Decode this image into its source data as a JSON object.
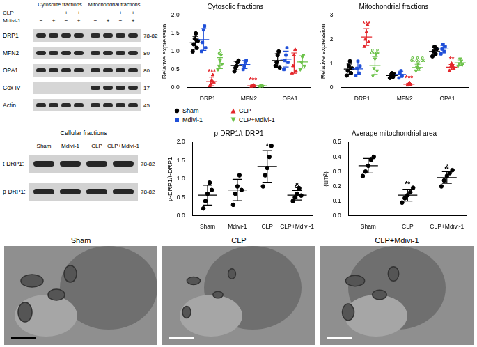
{
  "blots": [
    {
      "headers": [
        "Cytosolite fractions",
        "Mitochondrial fractions"
      ],
      "conditions": [
        {
          "name": "CLP",
          "signs": [
            "−",
            "−",
            "+",
            "+",
            "−",
            "−",
            "+",
            "+"
          ]
        },
        {
          "name": "Mdivi-1",
          "signs": [
            "−",
            "+",
            "−",
            "+",
            "−",
            "+",
            "−",
            "+"
          ]
        }
      ],
      "bands": [
        {
          "name": "DRP1",
          "size": "78-82",
          "present": [
            true,
            true,
            true,
            true,
            true,
            true,
            true,
            true
          ]
        },
        {
          "name": "MFN2",
          "size": "80",
          "present": [
            true,
            true,
            true,
            true,
            true,
            true,
            true,
            true
          ]
        },
        {
          "name": "OPA1",
          "size": "80",
          "present": [
            true,
            true,
            true,
            true,
            true,
            true,
            true,
            true
          ]
        },
        {
          "name": "Cox IV",
          "size": "17",
          "present": [
            false,
            false,
            false,
            false,
            true,
            true,
            true,
            true
          ]
        },
        {
          "name": "Actin",
          "size": "45",
          "present": [
            true,
            true,
            true,
            true,
            true,
            true,
            true,
            true
          ]
        }
      ]
    },
    {
      "title": "Cellular fractions",
      "columns": [
        "Sham",
        "Mdivi-1",
        "CLP",
        "CLP+Mdivi-1"
      ],
      "bands": [
        {
          "name": "t-DRP1:",
          "size": "78-82",
          "present": [
            true,
            true,
            true,
            true
          ]
        },
        {
          "name": "p-DRP1:",
          "size": "78-82",
          "present": [
            true,
            true,
            true,
            true
          ]
        }
      ]
    }
  ],
  "micrographs": [
    "Sham",
    "CLP",
    "CLP+Mdivi-1"
  ],
  "chart_data": [
    {
      "type": "dot",
      "title": "Cytosolic fractions",
      "y_label": "Relative expression",
      "categories": [
        "DRP1",
        "MFN2",
        "OPA1"
      ],
      "ylim": [
        0,
        2.0
      ],
      "yticks": [
        {
          "value": 0,
          "label": "0.0"
        },
        {
          "value": 0.5,
          "label": "0.5"
        },
        {
          "value": 1.0,
          "label": "1.0"
        },
        {
          "value": 1.5,
          "label": "1.5"
        },
        {
          "value": 2.0,
          "label": "2.0"
        }
      ],
      "grid": false,
      "legend": "bottom",
      "series": [
        {
          "name": "Sham",
          "color": "#000000",
          "marker": "circle",
          "values": [
            [
              1.0,
              1.2,
              1.35,
              1.5,
              1.1,
              1.3
            ],
            [
              0.45,
              0.55,
              0.6,
              0.7,
              0.75
            ],
            [
              0.6,
              0.7,
              0.9,
              1.0,
              0.55
            ]
          ],
          "mean": [
            1.24,
            0.61,
            0.75
          ],
          "sd": [
            0.18,
            0.12,
            0.19
          ]
        },
        {
          "name": "Mdivi-1",
          "color": "#1f4fd8",
          "marker": "square",
          "values": [
            [
              1.0,
              1.25,
              1.6,
              1.7,
              1.1
            ],
            [
              0.5,
              0.6,
              0.7,
              0.75
            ],
            [
              0.5,
              0.75,
              0.9,
              1.1,
              0.7
            ]
          ],
          "mean": [
            1.33,
            0.64,
            0.79
          ],
          "sd": [
            0.3,
            0.11,
            0.22
          ]
        },
        {
          "name": "CLP",
          "color": "#e3262b",
          "marker": "triangle",
          "values": [
            [
              0.05,
              0.1,
              0.2,
              0.35,
              0.15
            ],
            [
              0.03,
              0.05,
              0.07,
              0.04
            ],
            [
              0.4,
              0.6,
              0.9,
              1.05,
              0.45
            ]
          ],
          "mean": [
            0.17,
            0.05,
            0.68
          ],
          "sd": [
            0.12,
            0.02,
            0.28
          ]
        },
        {
          "name": "CLP+Mdivi-1",
          "color": "#6cc24a",
          "marker": "triangle-down",
          "values": [
            [
              0.5,
              0.6,
              0.75,
              0.9,
              0.65
            ],
            [
              0.03,
              0.05,
              0.06,
              0.04
            ],
            [
              0.5,
              0.7,
              0.85,
              0.9,
              0.6
            ]
          ],
          "mean": [
            0.68,
            0.05,
            0.71
          ],
          "sd": [
            0.15,
            0.01,
            0.17
          ]
        }
      ],
      "annotations": [
        {
          "category": "DRP1",
          "series": "CLP",
          "text": "***"
        },
        {
          "category": "DRP1",
          "series": "CLP+Mdivi-1",
          "text": "&"
        },
        {
          "category": "MFN2",
          "series": "CLP",
          "text": "***"
        }
      ]
    },
    {
      "type": "dot",
      "title": "Mitochondrial fractions",
      "y_label": "Relative expression",
      "categories": [
        "DRP1",
        "MFN2",
        "OPA1"
      ],
      "ylim": [
        0,
        3
      ],
      "yticks": [
        0,
        1,
        2,
        3
      ],
      "grid": false,
      "series": [
        {
          "name": "Sham",
          "color": "#000000",
          "marker": "circle",
          "values": [
            [
              0.5,
              0.7,
              0.9,
              1.1,
              0.6,
              0.8
            ],
            [
              0.4,
              0.5,
              0.6,
              0.45,
              0.55
            ],
            [
              1.3,
              1.5,
              1.7,
              1.4,
              1.6
            ]
          ],
          "mean": [
            0.77,
            0.5,
            1.5
          ],
          "sd": [
            0.21,
            0.08,
            0.16
          ]
        },
        {
          "name": "Mdivi-1",
          "color": "#1f4fd8",
          "marker": "square",
          "values": [
            [
              0.5,
              0.8,
              1.1,
              0.6,
              0.9
            ],
            [
              0.4,
              0.6,
              0.7,
              0.5
            ],
            [
              1.4,
              1.6,
              1.8,
              1.5,
              1.7
            ]
          ],
          "mean": [
            0.78,
            0.55,
            1.6
          ],
          "sd": [
            0.24,
            0.13,
            0.16
          ]
        },
        {
          "name": "CLP",
          "color": "#e3262b",
          "marker": "triangle",
          "values": [
            [
              1.7,
              2.0,
              2.3,
              2.6,
              1.9
            ],
            [
              0.1,
              0.15,
              0.2,
              0.12
            ],
            [
              0.7,
              0.85,
              1.0,
              0.9,
              0.8
            ]
          ],
          "mean": [
            2.1,
            0.14,
            0.85
          ],
          "sd": [
            0.35,
            0.04,
            0.11
          ]
        },
        {
          "name": "CLP+Mdivi-1",
          "color": "#6cc24a",
          "marker": "triangle-down",
          "values": [
            [
              0.5,
              0.8,
              1.2,
              1.4,
              0.7
            ],
            [
              0.7,
              0.85,
              1.0,
              0.8
            ],
            [
              0.9,
              1.0,
              1.2,
              1.1,
              0.95
            ]
          ],
          "mean": [
            0.92,
            0.84,
            1.03
          ],
          "sd": [
            0.37,
            0.13,
            0.12
          ]
        }
      ],
      "annotations": [
        {
          "category": "DRP1",
          "series": "CLP",
          "text": "***"
        },
        {
          "category": "DRP1",
          "series": "CLP+Mdivi-1",
          "text": "&&"
        },
        {
          "category": "MFN2",
          "series": "CLP",
          "text": "***"
        },
        {
          "category": "MFN2",
          "series": "CLP+Mdivi-1",
          "text": "&&&"
        },
        {
          "category": "OPA1",
          "series": "CLP",
          "text": "**"
        }
      ]
    },
    {
      "type": "dot",
      "title": "p-DRP1/t-DRP1",
      "y_label": "p-DRP1/t-DRP1",
      "categories": [
        "Sham",
        "Mdivi-1",
        "CLP",
        "CLP+Mdivi-1"
      ],
      "ylim": [
        0,
        2.0
      ],
      "yticks": [
        {
          "value": 0,
          "label": "0.0"
        },
        {
          "value": 0.5,
          "label": "0.5"
        },
        {
          "value": 1.0,
          "label": "1.0"
        },
        {
          "value": 1.5,
          "label": "1.5"
        },
        {
          "value": 2.0,
          "label": "2.0"
        }
      ],
      "grid": false,
      "series": [
        {
          "color": "#000000",
          "marker": "circle",
          "values": [
            [
              0.2,
              0.4,
              0.6,
              0.9,
              0.7
            ],
            [
              0.3,
              0.6,
              0.8,
              1.1,
              0.7
            ],
            [
              0.8,
              1.1,
              1.3,
              1.6,
              1.9
            ],
            [
              0.4,
              0.5,
              0.6,
              0.75,
              0.55
            ]
          ],
          "mean": [
            0.56,
            0.7,
            1.34,
            0.56
          ],
          "sd": [
            0.27,
            0.29,
            0.43,
            0.13
          ]
        }
      ],
      "annotations": [
        {
          "category": "CLP",
          "text": "*"
        },
        {
          "category": "CLP+Mdivi-1",
          "text": "&"
        }
      ]
    },
    {
      "type": "dot",
      "title": "Average mitochondrial area",
      "y_label": "(um²)",
      "categories": [
        "Sham",
        "CLP",
        "CLP+Mdivi-1"
      ],
      "ylim": [
        0,
        0.5
      ],
      "yticks": [
        {
          "value": 0,
          "label": "0.0"
        },
        {
          "value": 0.1,
          "label": "0.1"
        },
        {
          "value": 0.2,
          "label": "0.2"
        },
        {
          "value": 0.3,
          "label": "0.3"
        },
        {
          "value": 0.4,
          "label": "0.4"
        },
        {
          "value": 0.5,
          "label": "0.5"
        }
      ],
      "grid": false,
      "series": [
        {
          "color": "#000000",
          "marker": "circle",
          "values": [
            [
              0.27,
              0.3,
              0.34,
              0.38,
              0.4
            ],
            [
              0.09,
              0.12,
              0.14,
              0.16,
              0.19
            ],
            [
              0.2,
              0.24,
              0.27,
              0.29,
              0.31
            ]
          ],
          "mean": [
            0.34,
            0.14,
            0.26
          ],
          "sd": [
            0.05,
            0.04,
            0.04
          ]
        }
      ],
      "annotations": [
        {
          "category": "CLP",
          "text": "**"
        },
        {
          "category": "CLP+Mdivi-1",
          "text": "&"
        }
      ]
    }
  ]
}
